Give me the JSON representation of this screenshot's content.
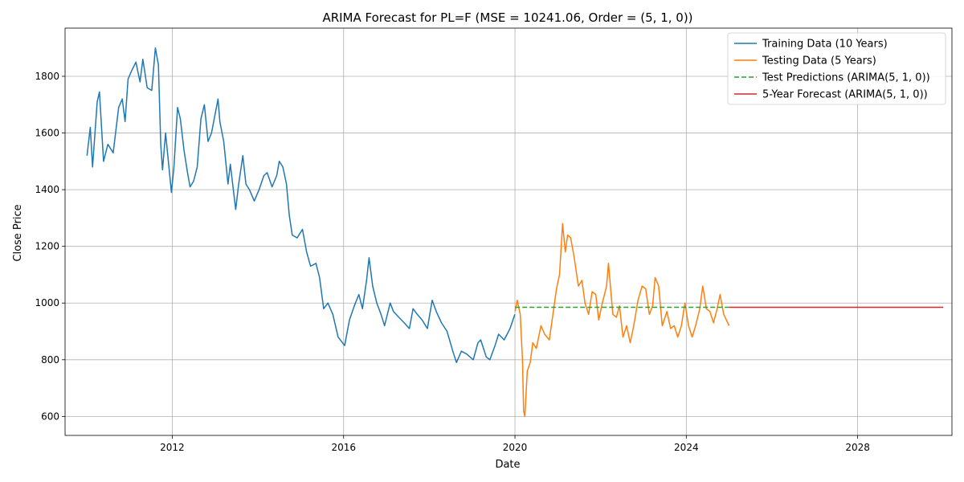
{
  "chart_data": {
    "type": "line",
    "title": "ARIMA Forecast for PL=F (MSE = 10241.06, Order = (5, 1, 0))",
    "xlabel": "Date",
    "ylabel": "Close Price",
    "xlim": [
      "2009-07-01",
      "2030-03-15"
    ],
    "ylim": [
      533,
      1970
    ],
    "x_ticks": [
      "2012",
      "2016",
      "2020",
      "2024",
      "2028"
    ],
    "y_ticks": [
      600,
      800,
      1000,
      1200,
      1400,
      1600,
      1800
    ],
    "grid": true,
    "legend_position": "top-right",
    "series": [
      {
        "name": "Training Data (10 Years)",
        "color": "#1f77b4",
        "style": "solid",
        "points": [
          [
            "2010-01-04",
            1520
          ],
          [
            "2010-02-01",
            1620
          ],
          [
            "2010-02-20",
            1480
          ],
          [
            "2010-04-01",
            1710
          ],
          [
            "2010-04-20",
            1745
          ],
          [
            "2010-05-25",
            1500
          ],
          [
            "2010-07-01",
            1560
          ],
          [
            "2010-08-15",
            1530
          ],
          [
            "2010-10-01",
            1690
          ],
          [
            "2010-11-01",
            1720
          ],
          [
            "2010-11-25",
            1640
          ],
          [
            "2010-12-20",
            1790
          ],
          [
            "2011-01-20",
            1820
          ],
          [
            "2011-02-25",
            1850
          ],
          [
            "2011-04-01",
            1780
          ],
          [
            "2011-04-25",
            1860
          ],
          [
            "2011-06-01",
            1760
          ],
          [
            "2011-07-10",
            1750
          ],
          [
            "2011-08-10",
            1900
          ],
          [
            "2011-09-05",
            1840
          ],
          [
            "2011-09-25",
            1560
          ],
          [
            "2011-10-10",
            1470
          ],
          [
            "2011-11-05",
            1600
          ],
          [
            "2011-12-25",
            1390
          ],
          [
            "2012-01-15",
            1480
          ],
          [
            "2012-02-15",
            1690
          ],
          [
            "2012-03-10",
            1650
          ],
          [
            "2012-04-10",
            1540
          ],
          [
            "2012-05-10",
            1460
          ],
          [
            "2012-06-01",
            1410
          ],
          [
            "2012-07-01",
            1430
          ],
          [
            "2012-08-01",
            1480
          ],
          [
            "2012-09-01",
            1650
          ],
          [
            "2012-10-01",
            1700
          ],
          [
            "2012-11-01",
            1570
          ],
          [
            "2012-12-01",
            1600
          ],
          [
            "2013-01-25",
            1720
          ],
          [
            "2013-02-10",
            1640
          ],
          [
            "2013-03-15",
            1570
          ],
          [
            "2013-04-20",
            1420
          ],
          [
            "2013-05-10",
            1490
          ],
          [
            "2013-06-25",
            1330
          ],
          [
            "2013-07-20",
            1420
          ],
          [
            "2013-08-25",
            1520
          ],
          [
            "2013-09-20",
            1420
          ],
          [
            "2013-10-20",
            1400
          ],
          [
            "2013-11-30",
            1360
          ],
          [
            "2014-01-10",
            1400
          ],
          [
            "2014-02-20",
            1450
          ],
          [
            "2014-03-20",
            1460
          ],
          [
            "2014-05-01",
            1410
          ],
          [
            "2014-06-10",
            1450
          ],
          [
            "2014-07-01",
            1500
          ],
          [
            "2014-08-01",
            1480
          ],
          [
            "2014-09-01",
            1420
          ],
          [
            "2014-09-25",
            1310
          ],
          [
            "2014-10-20",
            1240
          ],
          [
            "2014-12-01",
            1230
          ],
          [
            "2015-01-15",
            1260
          ],
          [
            "2015-02-20",
            1180
          ],
          [
            "2015-03-25",
            1130
          ],
          [
            "2015-05-10",
            1140
          ],
          [
            "2015-06-10",
            1090
          ],
          [
            "2015-07-15",
            980
          ],
          [
            "2015-08-20",
            1000
          ],
          [
            "2015-10-01",
            960
          ],
          [
            "2015-11-15",
            880
          ],
          [
            "2016-01-10",
            850
          ],
          [
            "2016-02-20",
            940
          ],
          [
            "2016-04-01",
            990
          ],
          [
            "2016-05-10",
            1030
          ],
          [
            "2016-06-10",
            980
          ],
          [
            "2016-07-15",
            1080
          ],
          [
            "2016-08-05",
            1160
          ],
          [
            "2016-09-05",
            1060
          ],
          [
            "2016-10-10",
            1000
          ],
          [
            "2016-11-15",
            960
          ],
          [
            "2016-12-15",
            920
          ],
          [
            "2017-02-01",
            1000
          ],
          [
            "2017-03-01",
            970
          ],
          [
            "2017-04-15",
            950
          ],
          [
            "2017-06-01",
            930
          ],
          [
            "2017-07-15",
            910
          ],
          [
            "2017-08-15",
            980
          ],
          [
            "2017-09-20",
            960
          ],
          [
            "2017-11-01",
            940
          ],
          [
            "2017-12-15",
            910
          ],
          [
            "2018-01-25",
            1010
          ],
          [
            "2018-03-01",
            970
          ],
          [
            "2018-04-15",
            930
          ],
          [
            "2018-06-01",
            900
          ],
          [
            "2018-07-20",
            830
          ],
          [
            "2018-08-20",
            790
          ],
          [
            "2018-10-01",
            830
          ],
          [
            "2018-11-15",
            820
          ],
          [
            "2019-01-10",
            800
          ],
          [
            "2019-02-20",
            860
          ],
          [
            "2019-03-15",
            870
          ],
          [
            "2019-05-01",
            810
          ],
          [
            "2019-06-01",
            800
          ],
          [
            "2019-07-15",
            850
          ],
          [
            "2019-08-15",
            890
          ],
          [
            "2019-10-01",
            870
          ],
          [
            "2019-11-20",
            910
          ],
          [
            "2019-12-31",
            960
          ]
        ]
      },
      {
        "name": "Testing Data (5 Years)",
        "color": "#ff7f0e",
        "style": "solid",
        "points": [
          [
            "2020-01-02",
            970
          ],
          [
            "2020-01-20",
            1010
          ],
          [
            "2020-02-15",
            960
          ],
          [
            "2020-03-05",
            800
          ],
          [
            "2020-03-15",
            620
          ],
          [
            "2020-03-25",
            600
          ],
          [
            "2020-04-15",
            760
          ],
          [
            "2020-05-10",
            790
          ],
          [
            "2020-06-01",
            860
          ],
          [
            "2020-07-01",
            840
          ],
          [
            "2020-08-10",
            920
          ],
          [
            "2020-09-10",
            890
          ],
          [
            "2020-10-20",
            870
          ],
          [
            "2020-11-20",
            960
          ],
          [
            "2020-12-20",
            1050
          ],
          [
            "2021-01-15",
            1100
          ],
          [
            "2021-02-10",
            1280
          ],
          [
            "2021-03-05",
            1180
          ],
          [
            "2021-03-25",
            1240
          ],
          [
            "2021-04-20",
            1230
          ],
          [
            "2021-05-20",
            1160
          ],
          [
            "2021-06-25",
            1060
          ],
          [
            "2021-07-25",
            1080
          ],
          [
            "2021-08-20",
            1000
          ],
          [
            "2021-09-20",
            960
          ],
          [
            "2021-10-20",
            1040
          ],
          [
            "2021-11-20",
            1030
          ],
          [
            "2021-12-15",
            940
          ],
          [
            "2022-01-15",
            1000
          ],
          [
            "2022-02-20",
            1060
          ],
          [
            "2022-03-08",
            1140
          ],
          [
            "2022-04-15",
            960
          ],
          [
            "2022-05-15",
            950
          ],
          [
            "2022-06-10",
            990
          ],
          [
            "2022-07-10",
            880
          ],
          [
            "2022-08-10",
            920
          ],
          [
            "2022-09-10",
            860
          ],
          [
            "2022-10-10",
            920
          ],
          [
            "2022-11-15",
            1010
          ],
          [
            "2022-12-20",
            1060
          ],
          [
            "2023-01-20",
            1050
          ],
          [
            "2023-02-20",
            960
          ],
          [
            "2023-03-20",
            990
          ],
          [
            "2023-04-10",
            1090
          ],
          [
            "2023-05-10",
            1060
          ],
          [
            "2023-06-10",
            920
          ],
          [
            "2023-07-20",
            970
          ],
          [
            "2023-08-20",
            910
          ],
          [
            "2023-09-20",
            920
          ],
          [
            "2023-10-20",
            880
          ],
          [
            "2023-11-20",
            920
          ],
          [
            "2023-12-20",
            1000
          ],
          [
            "2024-01-20",
            920
          ],
          [
            "2024-02-20",
            880
          ],
          [
            "2024-03-20",
            920
          ],
          [
            "2024-04-25",
            980
          ],
          [
            "2024-05-20",
            1060
          ],
          [
            "2024-06-20",
            980
          ],
          [
            "2024-07-20",
            970
          ],
          [
            "2024-08-20",
            930
          ],
          [
            "2024-09-20",
            980
          ],
          [
            "2024-10-15",
            1030
          ],
          [
            "2024-11-15",
            960
          ],
          [
            "2024-12-31",
            920
          ]
        ]
      },
      {
        "name": "Test Predictions (ARIMA(5, 1, 0))",
        "color": "#2ca02c",
        "style": "dashed",
        "points": [
          [
            "2020-01-02",
            985
          ],
          [
            "2024-12-31",
            985
          ]
        ]
      },
      {
        "name": "5-Year Forecast (ARIMA(5, 1, 0))",
        "color": "#d62728",
        "style": "solid",
        "points": [
          [
            "2024-12-31",
            985
          ],
          [
            "2029-12-31",
            985
          ]
        ]
      }
    ]
  }
}
